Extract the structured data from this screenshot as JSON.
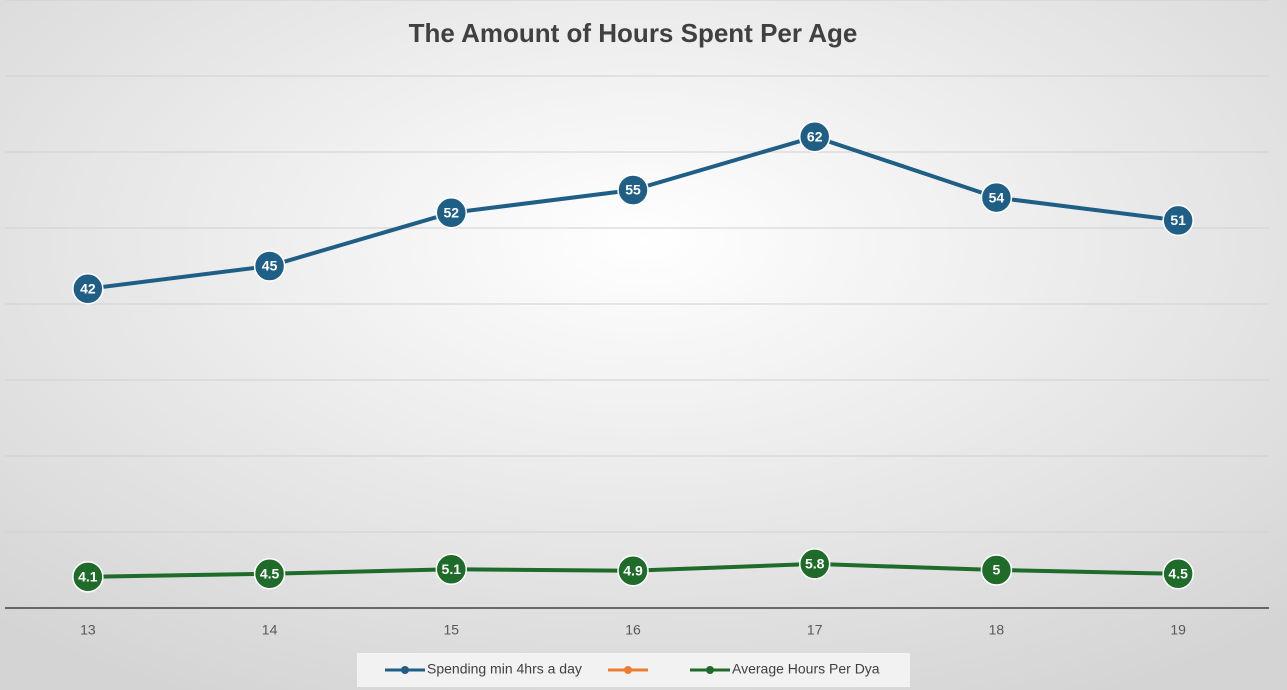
{
  "chart_data": {
    "type": "line",
    "title": "The Amount of Hours Spent Per Age",
    "categories": [
      "13",
      "14",
      "15",
      "16",
      "17",
      "18",
      "19"
    ],
    "series": [
      {
        "name": "Spending min 4hrs a day",
        "color": "#1f5f86",
        "values": [
          42,
          45,
          52,
          55,
          62,
          54,
          51
        ]
      },
      {
        "name": null,
        "color": "#ed7d31",
        "values": [
          null,
          null,
          null,
          null,
          null,
          null,
          null
        ]
      },
      {
        "name": "Average Hours Per Dya",
        "color": "#1e6b2a",
        "values": [
          4.1,
          4.5,
          5.1,
          4.9,
          5.8,
          5,
          4.5
        ]
      }
    ],
    "ylim": [
      0,
      80
    ],
    "yticks": [
      0,
      10,
      20,
      30,
      40,
      50,
      60,
      70,
      80
    ],
    "grid": true,
    "legend": "bottom"
  }
}
